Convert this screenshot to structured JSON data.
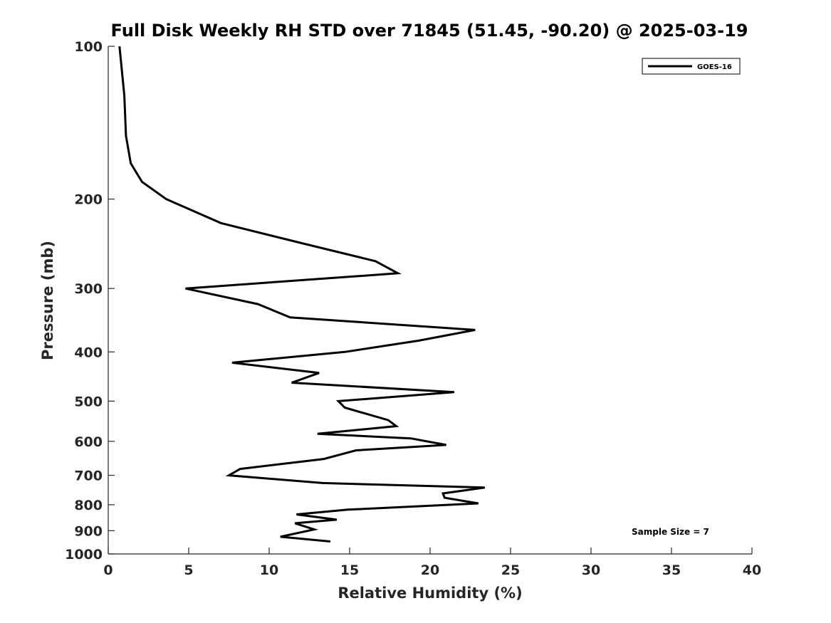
{
  "chart_data": {
    "type": "line",
    "title": "Full Disk Weekly RH STD over 71845 (51.45, -90.20) @ 2025-03-19",
    "xlabel": "Relative Humidity (%)",
    "ylabel": "Pressure (mb)",
    "xlim": [
      0,
      40
    ],
    "ylim": [
      100,
      1000
    ],
    "y_scale": "log",
    "y_reversed": true,
    "x_ticks": [
      0,
      5,
      10,
      15,
      20,
      25,
      30,
      35,
      40
    ],
    "y_ticks": [
      100,
      200,
      300,
      400,
      500,
      600,
      700,
      800,
      900,
      1000
    ],
    "grid": false,
    "legend_position": "top-right",
    "series": [
      {
        "name": "GOES-16",
        "color": "#000000",
        "points": [
          [
            0.7,
            100
          ],
          [
            1.0,
            125
          ],
          [
            1.1,
            150
          ],
          [
            1.4,
            170
          ],
          [
            2.1,
            185
          ],
          [
            3.6,
            200
          ],
          [
            7.0,
            223
          ],
          [
            12.2,
            245
          ],
          [
            16.6,
            265
          ],
          [
            18.0,
            280
          ],
          [
            4.8,
            300
          ],
          [
            9.3,
            322
          ],
          [
            11.3,
            342
          ],
          [
            22.8,
            362
          ],
          [
            19.3,
            380
          ],
          [
            14.7,
            400
          ],
          [
            7.7,
            420
          ],
          [
            13.1,
            440
          ],
          [
            11.4,
            460
          ],
          [
            21.5,
            480
          ],
          [
            14.3,
            500
          ],
          [
            14.7,
            515
          ],
          [
            17.4,
            545
          ],
          [
            17.9,
            560
          ],
          [
            13.0,
            580
          ],
          [
            18.8,
            592
          ],
          [
            21.0,
            610
          ],
          [
            15.4,
            625
          ],
          [
            13.4,
            650
          ],
          [
            8.2,
            680
          ],
          [
            7.5,
            700
          ],
          [
            13.3,
            725
          ],
          [
            23.4,
            740
          ],
          [
            20.8,
            760
          ],
          [
            20.9,
            775
          ],
          [
            23.0,
            795
          ],
          [
            14.9,
            818
          ],
          [
            11.7,
            836
          ],
          [
            14.2,
            856
          ],
          [
            11.6,
            870
          ],
          [
            12.8,
            895
          ],
          [
            10.7,
            925
          ],
          [
            13.8,
            945
          ]
        ]
      }
    ],
    "annotations": [
      "Sample Size = 7"
    ]
  }
}
